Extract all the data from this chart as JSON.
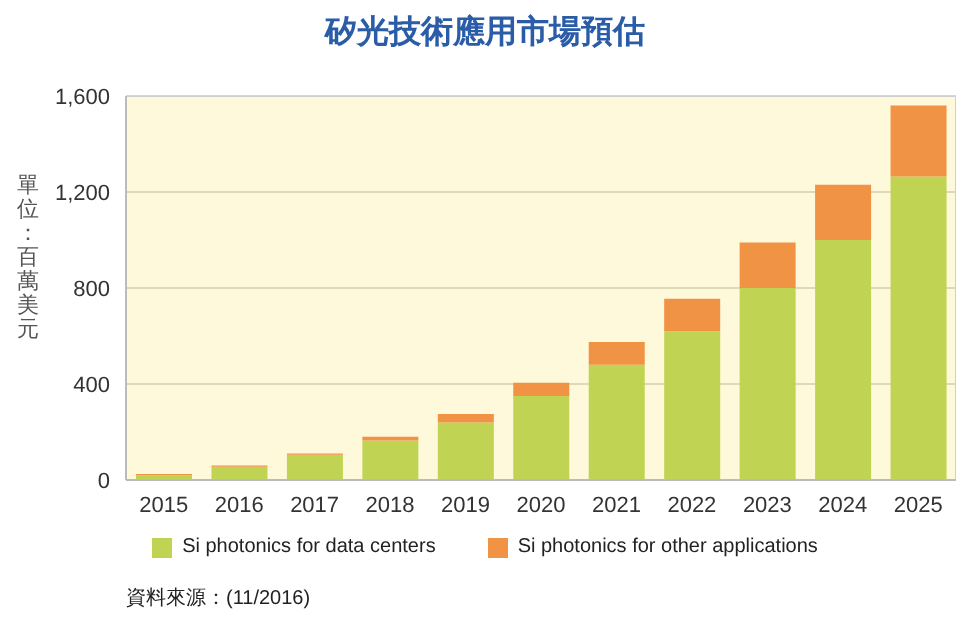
{
  "chart_data": {
    "type": "bar",
    "title": "矽光技術應用市場預估",
    "ylabel": "單位：百萬美元",
    "categories": [
      "2015",
      "2016",
      "2017",
      "2018",
      "2019",
      "2020",
      "2021",
      "2022",
      "2023",
      "2024",
      "2025"
    ],
    "series": [
      {
        "name": "Si photonics for data centers",
        "color": "#c1d353",
        "values": [
          20,
          55,
          105,
          165,
          240,
          350,
          480,
          620,
          800,
          1000,
          1265
        ]
      },
      {
        "name": "Si photonics for other applications",
        "color": "#f19344",
        "values": [
          5,
          5,
          5,
          15,
          35,
          55,
          95,
          135,
          190,
          230,
          295
        ]
      }
    ],
    "stacked": true,
    "ylim": [
      0,
      1600
    ],
    "yticks": [
      0,
      400,
      800,
      {
        "value": 1200,
        "label": "1,200"
      },
      {
        "value": 1600,
        "label": "1,600"
      }
    ],
    "grid": "y",
    "legend": "bottom",
    "annotations": [
      "資料來源：(11/2016)"
    ]
  }
}
